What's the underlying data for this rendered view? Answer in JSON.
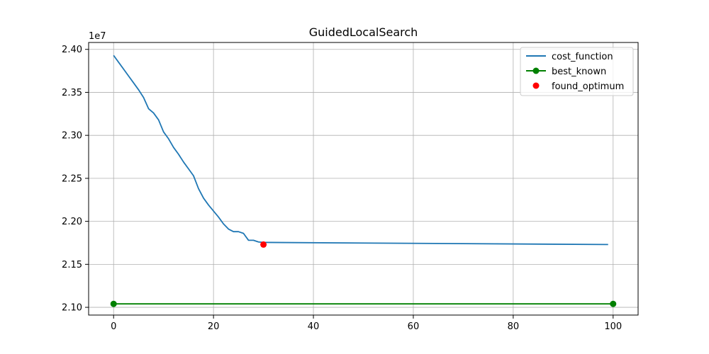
{
  "chart_data": {
    "type": "line",
    "title": "GuidedLocalSearch",
    "xlabel": "",
    "ylabel": "",
    "y_scale_label": "1e7",
    "xlim": [
      -5,
      105
    ],
    "ylim": [
      2.091,
      2.408
    ],
    "xticks": [
      0,
      20,
      40,
      60,
      80,
      100
    ],
    "yticks": [
      2.1,
      2.15,
      2.2,
      2.25,
      2.3,
      2.35,
      2.4
    ],
    "grid": true,
    "legend_position": "top-right",
    "series": [
      {
        "name": "cost_function",
        "type": "line",
        "color": "#1f77b4",
        "x": [
          0,
          1,
          2,
          3,
          4,
          5,
          6,
          7,
          8,
          9,
          10,
          11,
          12,
          13,
          14,
          15,
          16,
          17,
          18,
          19,
          20,
          21,
          22,
          23,
          24,
          25,
          26,
          27,
          28,
          29,
          30,
          99
        ],
        "y": [
          2.393,
          2.385,
          2.377,
          2.369,
          2.361,
          2.353,
          2.344,
          2.331,
          2.326,
          2.318,
          2.304,
          2.296,
          2.286,
          2.278,
          2.269,
          2.261,
          2.253,
          2.238,
          2.227,
          2.219,
          2.212,
          2.205,
          2.197,
          2.191,
          2.188,
          2.188,
          2.186,
          2.178,
          2.178,
          2.176,
          2.1755,
          2.173
        ]
      },
      {
        "name": "best_known",
        "type": "line-marker",
        "color": "#008000",
        "x": [
          0,
          100
        ],
        "y": [
          2.104,
          2.104
        ]
      },
      {
        "name": "found_optimum",
        "type": "scatter",
        "color": "#ff0000",
        "x": [
          30
        ],
        "y": [
          2.173
        ]
      }
    ]
  }
}
